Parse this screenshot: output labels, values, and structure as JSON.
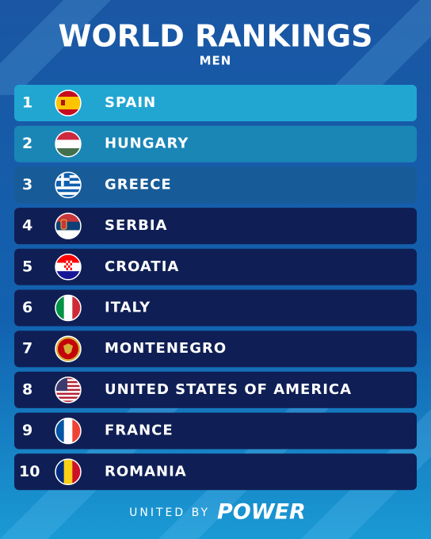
{
  "header": {
    "title": "WORLD RANKINGS",
    "subtitle": "MEN"
  },
  "rankings": [
    {
      "rank": 1,
      "country": "SPAIN"
    },
    {
      "rank": 2,
      "country": "HUNGARY"
    },
    {
      "rank": 3,
      "country": "GREECE"
    },
    {
      "rank": 4,
      "country": "SERBIA"
    },
    {
      "rank": 5,
      "country": "CROATIA"
    },
    {
      "rank": 6,
      "country": "ITALY"
    },
    {
      "rank": 7,
      "country": "MONTENEGRO"
    },
    {
      "rank": 8,
      "country": "UNITED STATES OF AMERICA"
    },
    {
      "rank": 9,
      "country": "FRANCE"
    },
    {
      "rank": 10,
      "country": "ROMANIA"
    }
  ],
  "footer": {
    "tagline": "UNITED BY",
    "brand": "POWER"
  }
}
